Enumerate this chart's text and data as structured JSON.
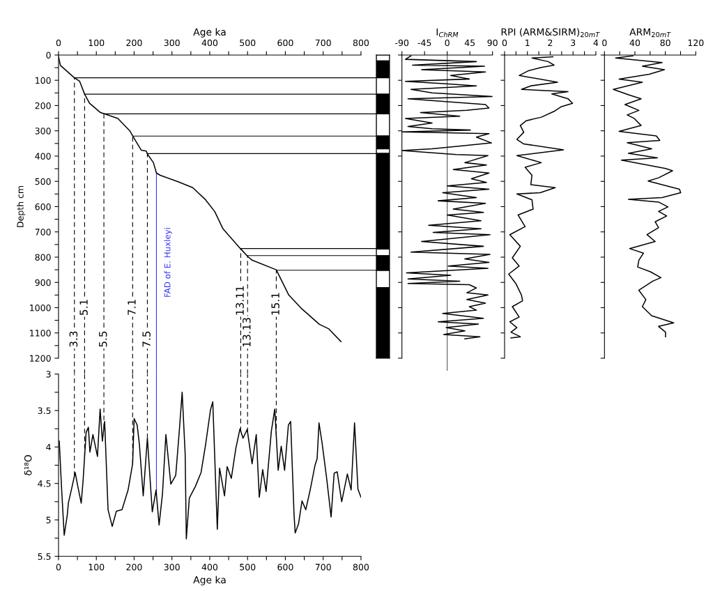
{
  "chart_data": [
    {
      "type": "line",
      "xlabel": "Age ka",
      "ylabel": "Depth cm",
      "xlim": [
        0,
        800
      ],
      "xticks": [
        0,
        {
          "value": 50,
          "label": null
        },
        100,
        {
          "value": 150,
          "label": null
        },
        200,
        {
          "value": 250,
          "label": null
        },
        300,
        {
          "value": 350,
          "label": null
        },
        400,
        {
          "value": 450,
          "label": null
        },
        500,
        {
          "value": 550,
          "label": null
        },
        600,
        {
          "value": 650,
          "label": null
        },
        700,
        {
          "value": 750,
          "label": null
        },
        800
      ],
      "ylim": [
        1200,
        0
      ],
      "yticks": [
        0,
        {
          "value": 50,
          "label": null
        },
        100,
        {
          "value": 150,
          "label": null
        },
        200,
        {
          "value": 250,
          "label": null
        },
        300,
        {
          "value": 350,
          "label": null
        },
        400,
        {
          "value": 450,
          "label": null
        },
        500,
        {
          "value": 550,
          "label": null
        },
        600,
        {
          "value": 650,
          "label": null
        },
        700,
        {
          "value": 750,
          "label": null
        },
        800,
        {
          "value": 850,
          "label": null
        },
        900,
        {
          "value": 950,
          "label": null
        },
        1000,
        {
          "value": 1050,
          "label": null
        },
        1100,
        {
          "value": 1150,
          "label": null
        },
        1200
      ],
      "series": [
        {
          "color": "#000000",
          "x": [
            0,
            5,
            42,
            56,
            69,
            82,
            111,
            120,
            157,
            189,
            196,
            219,
            232,
            235,
            251,
            259,
            269,
            315,
            355,
            389,
            413,
            435,
            481,
            501,
            512,
            576,
            609,
            641,
            690,
            715,
            747
          ],
          "values": [
            7,
            41,
            90,
            104,
            155,
            191,
            228,
            232,
            251,
            301,
            320,
            377,
            380,
            392,
            426,
            467,
            476,
            501,
            525,
            573,
            619,
            688,
            766,
            798,
            812,
            850,
            950,
            1001,
            1066,
            1084,
            1134
          ]
        }
      ],
      "ref_lines": [
        {
          "axis": "y",
          "value": 90,
          "color": "#000000"
        },
        {
          "axis": "y",
          "value": 155,
          "color": "#000000"
        },
        {
          "axis": "y",
          "value": 233,
          "color": "#000000"
        },
        {
          "axis": "y",
          "value": 321,
          "color": "#000000"
        },
        {
          "axis": "y",
          "value": 390,
          "color": "#000000"
        },
        {
          "axis": "y",
          "value": 766,
          "color": "#000000"
        },
        {
          "axis": "y",
          "value": 794,
          "color": "#000000"
        },
        {
          "axis": "y",
          "value": 852,
          "color": "#000000"
        },
        {
          "axis": "x",
          "value": 42,
          "color": "#000000",
          "line_style": "dashed"
        },
        {
          "axis": "x",
          "value": 69,
          "color": "#000000",
          "line_style": "dashed"
        },
        {
          "axis": "x",
          "value": 120,
          "color": "#000000",
          "line_style": "dashed"
        },
        {
          "axis": "x",
          "value": 196,
          "color": "#000000",
          "line_style": "dashed"
        },
        {
          "axis": "x",
          "value": 235,
          "color": "#000000",
          "line_style": "dashed"
        },
        {
          "axis": "x",
          "value": 482,
          "color": "#000000",
          "line_style": "dashed"
        },
        {
          "axis": "x",
          "value": 500,
          "color": "#000000",
          "line_style": "dashed"
        },
        {
          "axis": "x",
          "value": 576,
          "color": "#000000",
          "line_style": "dashed"
        },
        {
          "axis": "x",
          "value": 259,
          "label": "FAD of E. Huxleyi",
          "color": "#3333ff",
          "line_style": "solid"
        }
      ],
      "annotations": [
        {
          "text": "3.3",
          "x": 42
        },
        {
          "text": "5.1",
          "x": 69
        },
        {
          "text": "5.5",
          "x": 120
        },
        {
          "text": "7.1",
          "x": 196
        },
        {
          "text": "7.5",
          "x": 235
        },
        {
          "text": "13.11",
          "x": 482
        },
        {
          "text": "13.13",
          "x": 500
        },
        {
          "text": "15.1",
          "x": 576
        }
      ]
    },
    {
      "type": "bar",
      "stacked": true,
      "categories": [
        null
      ],
      "ylim": [
        1200,
        0
      ],
      "tick_labels": false,
      "series": [
        {
          "color": "#ffffff",
          "values": [
            23
          ]
        },
        {
          "color": "#000000",
          "values": [
            67
          ]
        },
        {
          "color": "#ffffff",
          "values": [
            65
          ]
        },
        {
          "color": "#000000",
          "values": [
            78
          ]
        },
        {
          "color": "#ffffff",
          "values": [
            87
          ]
        },
        {
          "color": "#000000",
          "values": [
            52
          ]
        },
        {
          "color": "#ffffff",
          "values": [
            17
          ]
        },
        {
          "color": "#000000",
          "values": [
            379
          ]
        },
        {
          "color": "#ffffff",
          "values": [
            26
          ]
        },
        {
          "color": "#000000",
          "values": [
            59
          ]
        },
        {
          "color": "#ffffff",
          "values": [
            67
          ]
        },
        {
          "color": "#000000",
          "values": [
            280
          ]
        }
      ]
    },
    {
      "type": "line",
      "xlabel": "I$_{ChRM}$",
      "xlim": [
        -90,
        90
      ],
      "xticks": [
        -90,
        -45,
        0,
        45,
        90
      ],
      "ylim": [
        1200,
        0
      ],
      "yticks": [
        0,
        100,
        200,
        300,
        400,
        500,
        600,
        700,
        800,
        900,
        1000,
        1100,
        1200
      ],
      "tick_labels": "x",
      "ref_lines": [
        {
          "axis": "x",
          "value": 0,
          "color": "#555555"
        }
      ],
      "series": [
        {
          "color": "#000000",
          "x": [
            -72,
            -83,
            58,
            -69,
            74,
            -51,
            76,
            7,
            44,
            -83,
            -7,
            58,
            -72,
            -30,
            90,
            -78,
            76,
            83,
            39,
            -53,
            25,
            -83,
            -30,
            -78,
            -30,
            46,
            -90,
            83,
            58,
            88,
            23,
            -30,
            -90,
            18,
            81,
            35,
            78,
            12,
            83,
            48,
            78,
            0,
            83,
            -9,
            58,
            -18,
            76,
            12,
            72,
            0,
            67,
            -37,
            67,
            -28,
            85,
            -51,
            72,
            -72,
            85,
            35,
            83,
            2,
            81,
            -81,
            7,
            -78,
            25,
            -78,
            44,
            58,
            39,
            81,
            39,
            76,
            44,
            58,
            -9,
            72,
            -18,
            62,
            -2,
            35,
            -7,
            65,
            35
          ],
          "values": [
            3,
            17,
            26,
            40,
            44,
            58,
            67,
            81,
            95,
            104,
            113,
            122,
            136,
            150,
            164,
            173,
            196,
            210,
            219,
            228,
            242,
            251,
            269,
            283,
            292,
            297,
            304,
            311,
            325,
            348,
            361,
            371,
            378,
            394,
            398,
            426,
            435,
            453,
            467,
            490,
            504,
            518,
            531,
            545,
            564,
            577,
            587,
            610,
            623,
            633,
            656,
            674,
            688,
            702,
            711,
            738,
            757,
            780,
            789,
            807,
            821,
            835,
            844,
            862,
            872,
            886,
            895,
            904,
            909,
            922,
            941,
            950,
            968,
            982,
            996,
            1010,
            1023,
            1042,
            1056,
            1065,
            1079,
            1092,
            1106,
            1115,
            1123
          ]
        }
      ]
    },
    {
      "type": "line",
      "xlabel": "RPI (ARM&SIRM)$_{20mT}$",
      "xlim": [
        0,
        4
      ],
      "xticks": [
        0,
        {
          "value": 0.5,
          "label": null
        },
        1,
        {
          "value": 1.5,
          "label": null
        },
        2,
        {
          "value": 2.5,
          "label": null
        },
        3,
        {
          "value": 3.5,
          "label": null
        },
        4
      ],
      "ylim": [
        1200,
        0
      ],
      "yticks": [
        0,
        100,
        200,
        300,
        400,
        500,
        600,
        700,
        800,
        900,
        1000,
        1100,
        1200
      ],
      "tick_labels": "x",
      "series": [
        {
          "color": "#000000",
          "x": [
            2.12,
            1.2,
            1.91,
            2.17,
            1.61,
            1.05,
            0.64,
            2.32,
            1.15,
            0.74,
            2.78,
            2.07,
            2.78,
            2.98,
            2.47,
            2.17,
            1.61,
            0.95,
            0.69,
            0.84,
            0.54,
            0.84,
            2.58,
            0.54,
            1.61,
            0.9,
            1.2,
            1.15,
            2.22,
            1.56,
            0.54,
            1.2,
            1.25,
            0.59,
            0.9,
            0.23,
            0.69,
            0.34,
            0.64,
            0.18,
            0.49,
            0.74,
            0.79,
            0.34,
            0.64,
            0.23,
            0.54,
            0.28,
            0.69,
            0.28
          ],
          "values": [
            7,
            12,
            26,
            40,
            49,
            62,
            81,
            108,
            122,
            136,
            145,
            154,
            173,
            191,
            205,
            223,
            246,
            260,
            279,
            306,
            334,
            352,
            375,
            398,
            426,
            444,
            476,
            513,
            525,
            545,
            550,
            573,
            610,
            633,
            679,
            711,
            757,
            803,
            835,
            867,
            904,
            950,
            973,
            996,
            1037,
            1056,
            1079,
            1097,
            1115,
            1120
          ]
        }
      ]
    },
    {
      "type": "line",
      "xlabel": "ARM$_{20mT}$",
      "xlim": [
        0,
        120
      ],
      "xticks": [
        0,
        {
          "value": 20,
          "label": null
        },
        40,
        {
          "value": 60,
          "label": null
        },
        80,
        {
          "value": 100,
          "label": null
        },
        120
      ],
      "ylim": [
        1200,
        0
      ],
      "yticks": [
        0,
        100,
        200,
        300,
        400,
        500,
        600,
        700,
        800,
        900,
        1000,
        1100,
        1200
      ],
      "tick_labels": "x",
      "series": [
        {
          "color": "#000000",
          "x": [
            37.6,
            14.7,
            75.7,
            49.8,
            78.8,
            58.9,
            19.2,
            49.8,
            11.6,
            33,
            48.2,
            26.9,
            45.2,
            29.9,
            39.1,
            48.2,
            19.2,
            68.1,
            72.7,
            29.9,
            62,
            31.5,
            69.6,
            22.3,
            80.3,
            89.5,
            71.1,
            57.4,
            81.8,
            98.6,
            100.2,
            75.7,
            31.5,
            71.1,
            83.4,
            71.1,
            81.8,
            66.6,
            71.1,
            55.9,
            66.6,
            33,
            51.3,
            45.2,
            43.7,
            60.5,
            74.2,
            63.5,
            45.2,
            54.4,
            49.8,
            62,
            91,
            71.1,
            80.3,
            80.3
          ],
          "values": [
            3,
            12,
            30,
            44,
            58,
            76,
            95,
            108,
            136,
            159,
            173,
            196,
            219,
            237,
            251,
            279,
            302,
            320,
            338,
            347,
            371,
            389,
            407,
            416,
            449,
            458,
            486,
            499,
            518,
            531,
            545,
            564,
            571,
            582,
            601,
            619,
            637,
            660,
            683,
            711,
            738,
            766,
            784,
            812,
            839,
            858,
            881,
            895,
            931,
            968,
            996,
            1032,
            1060,
            1074,
            1097,
            1115
          ]
        }
      ]
    },
    {
      "type": "line",
      "xlabel": "Age ka",
      "ylabel": "δ¹⁸O",
      "xlim": [
        0,
        800
      ],
      "xticks": [
        0,
        {
          "value": 50,
          "label": null
        },
        100,
        {
          "value": 150,
          "label": null
        },
        200,
        {
          "value": 250,
          "label": null
        },
        300,
        {
          "value": 350,
          "label": null
        },
        400,
        {
          "value": 450,
          "label": null
        },
        500,
        {
          "value": 550,
          "label": null
        },
        600,
        {
          "value": 650,
          "label": null
        },
        700,
        {
          "value": 750,
          "label": null
        },
        800
      ],
      "ylim": [
        5.5,
        3
      ],
      "yticks": [
        3,
        {
          "value": 3.25,
          "label": null
        },
        3.5,
        {
          "value": 3.75,
          "label": null
        },
        4,
        {
          "value": 4.25,
          "label": null
        },
        4.5,
        {
          "value": 4.75,
          "label": null
        },
        5,
        {
          "value": 5.25,
          "label": null
        },
        5.5
      ],
      "ref_lines": [
        {
          "axis": "x",
          "value": 42,
          "color": "#000000",
          "line_style": "dashed"
        },
        {
          "axis": "x",
          "value": 69,
          "color": "#000000",
          "line_style": "dashed"
        },
        {
          "axis": "x",
          "value": 120,
          "color": "#000000",
          "line_style": "dashed"
        },
        {
          "axis": "x",
          "value": 196,
          "color": "#000000",
          "line_style": "dashed"
        },
        {
          "axis": "x",
          "value": 235,
          "color": "#000000",
          "line_style": "dashed"
        },
        {
          "axis": "x",
          "value": 482,
          "color": "#000000",
          "line_style": "dashed"
        },
        {
          "axis": "x",
          "value": 500,
          "color": "#000000",
          "line_style": "dashed"
        },
        {
          "axis": "x",
          "value": 576,
          "color": "#000000",
          "line_style": "dashed"
        },
        {
          "axis": "x",
          "value": 259,
          "color": "#3333ff",
          "line_style": "solid"
        }
      ],
      "series": [
        {
          "color": "#000000",
          "x": [
            2,
            8,
            15,
            23,
            26,
            36,
            44,
            51,
            60,
            65,
            73,
            79,
            83,
            91,
            103,
            110,
            116,
            122,
            131,
            142,
            153,
            168,
            184,
            196,
            200,
            208,
            214,
            224,
            235,
            248,
            258,
            266,
            275,
            284,
            297,
            310,
            319,
            327,
            335,
            338,
            346,
            362,
            377,
            389,
            402,
            408,
            420,
            426,
            439,
            446,
            457,
            469,
            480,
            488,
            499,
            512,
            523,
            531,
            540,
            549,
            563,
            572,
            581,
            589,
            598,
            608,
            614,
            623,
            626,
            635,
            644,
            654,
            666,
            678,
            684,
            689,
            697,
            709,
            721,
            729,
            737,
            749,
            764,
            774,
            783,
            792,
            800
          ],
          "values": [
            3.92,
            4.56,
            5.21,
            4.94,
            4.77,
            4.54,
            4.35,
            4.54,
            4.77,
            4.46,
            3.8,
            3.73,
            4.07,
            3.83,
            4.13,
            3.48,
            3.92,
            3.65,
            4.86,
            5.09,
            4.88,
            4.86,
            4.59,
            4.23,
            3.61,
            3.7,
            3.97,
            4.67,
            3.88,
            4.89,
            4.59,
            5.07,
            4.64,
            3.83,
            4.51,
            4.39,
            3.81,
            3.25,
            4.1,
            5.26,
            4.7,
            4.54,
            4.35,
            3.97,
            3.49,
            3.38,
            5.13,
            4.29,
            4.67,
            4.27,
            4.43,
            4.02,
            3.75,
            3.88,
            3.76,
            4.23,
            3.83,
            4.69,
            4.31,
            4.61,
            3.78,
            3.48,
            4.32,
            3.99,
            4.32,
            3.7,
            3.65,
            4.93,
            5.18,
            5.05,
            4.74,
            4.86,
            4.58,
            4.26,
            4.16,
            3.67,
            3.94,
            4.42,
            4.96,
            4.36,
            4.34,
            4.75,
            4.37,
            4.59,
            3.67,
            4.58,
            4.69
          ]
        }
      ]
    }
  ]
}
